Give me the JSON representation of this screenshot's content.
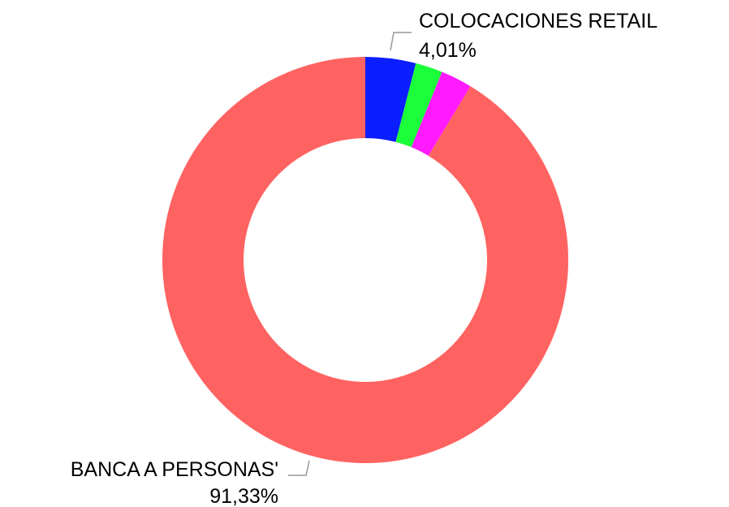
{
  "chart_data": {
    "type": "donut",
    "categories": [
      "COLOCACIONES RETAIL",
      null,
      null,
      "BANCA A PERSONAS'"
    ],
    "values": [
      4.01,
      2.16,
      2.5,
      91.33
    ],
    "value_labels": [
      "4,01%",
      null,
      null,
      "91,33%"
    ],
    "colors": [
      "#0a1eff",
      "#1aff3a",
      "#ff1aff",
      "#ff6361"
    ]
  }
}
